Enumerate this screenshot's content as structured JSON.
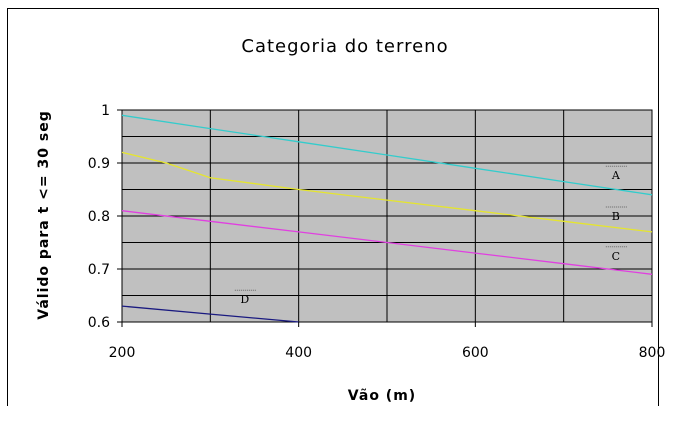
{
  "chart_data": {
    "type": "line",
    "title": "Categoria do terreno",
    "xlabel": "Vão (m)",
    "ylabel": "Válido para t <= 30 seg",
    "xlim": [
      200,
      800
    ],
    "ylim": [
      0.6,
      1
    ],
    "x_ticks": [
      200,
      400,
      600,
      800
    ],
    "x_tick_labels": [
      "200",
      "400",
      "600",
      "800"
    ],
    "y_ticks": [
      0.6,
      0.7,
      0.8,
      0.9,
      1
    ],
    "y_tick_labels": [
      "0.6",
      "0.7",
      "0.8",
      "0.9",
      "1"
    ],
    "grid": true,
    "plot_background": "#c0c0c0",
    "series": [
      {
        "name": "A",
        "color": "#33cccc",
        "x": [
          200,
          300,
          400,
          500,
          600,
          700,
          800
        ],
        "y": [
          0.99,
          0.965,
          0.94,
          0.915,
          0.89,
          0.865,
          0.84
        ]
      },
      {
        "name": "B",
        "color": "#e5e52e",
        "x": [
          200,
          250,
          300,
          400,
          500,
          600,
          700,
          800
        ],
        "y": [
          0.92,
          0.9,
          0.872,
          0.85,
          0.83,
          0.81,
          0.79,
          0.77
        ]
      },
      {
        "name": "C",
        "color": "#e040e0",
        "x": [
          200,
          300,
          400,
          500,
          600,
          700,
          800
        ],
        "y": [
          0.81,
          0.79,
          0.77,
          0.75,
          0.73,
          0.71,
          0.69
        ]
      },
      {
        "name": "D",
        "color": "#1a1a80",
        "x": [
          200,
          300,
          400
        ],
        "y": [
          0.63,
          0.615,
          0.6
        ]
      }
    ]
  }
}
